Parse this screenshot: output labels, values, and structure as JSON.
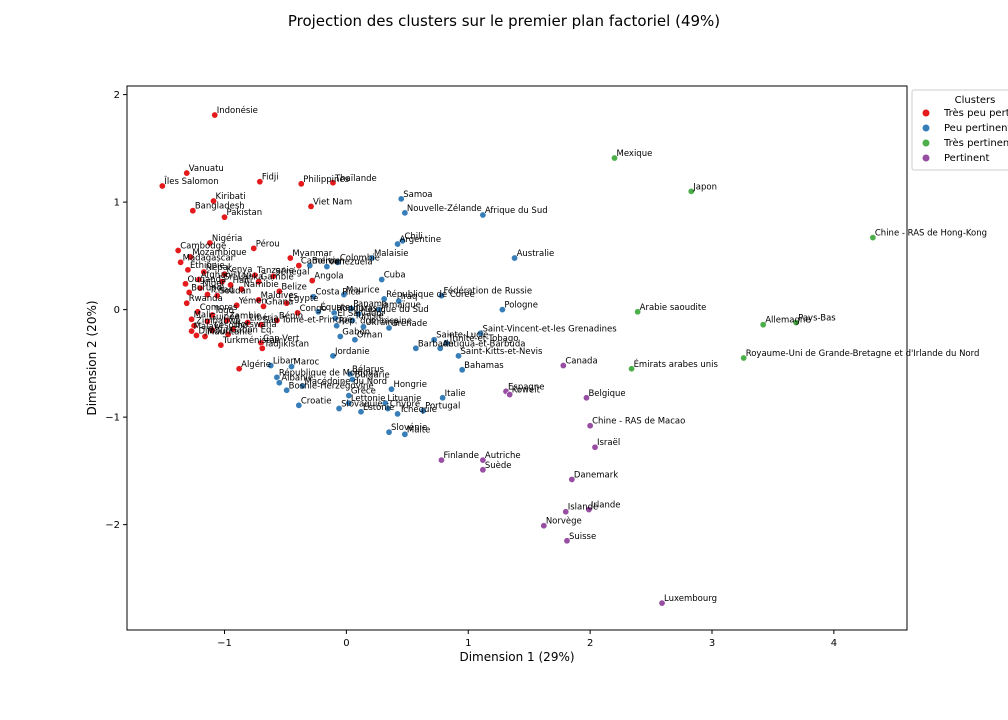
{
  "chart_data": {
    "type": "scatter",
    "title": "Projection des clusters sur le premier plan factoriel (49%)",
    "xlabel": "Dimension 1 (29%)",
    "ylabel": "Dimension 2 (20%)",
    "xlim": [
      -1.8,
      4.6
    ],
    "ylim": [
      -2.98,
      2.08
    ],
    "xticks": [
      -1,
      0,
      1,
      2,
      3,
      4
    ],
    "yticks": [
      -2,
      -1,
      0,
      1,
      2
    ],
    "grid": false,
    "legend": {
      "title": "Clusters",
      "placement": "top-right",
      "entries": [
        "Très peu pertinent",
        "Peu pertinent",
        "Très pertinent",
        "Pertinent"
      ]
    },
    "colors": {
      "Très peu pertinent": "#e41a1c",
      "Peu pertinent": "#377eb8",
      "Très pertinent": "#4daf4a",
      "Pertinent": "#984ea3"
    },
    "series": [
      {
        "name": "Très peu pertinent",
        "points": [
          {
            "label": "Indonésie",
            "x": -1.08,
            "y": 1.81
          },
          {
            "label": "Vanuatu",
            "x": -1.31,
            "y": 1.27
          },
          {
            "label": "Îles Salomon",
            "x": -1.51,
            "y": 1.15
          },
          {
            "label": "Fidji",
            "x": -0.71,
            "y": 1.19
          },
          {
            "label": "Philippines",
            "x": -0.37,
            "y": 1.17
          },
          {
            "label": "Thaïlande",
            "x": -0.11,
            "y": 1.18
          },
          {
            "label": "Kiribati",
            "x": -1.09,
            "y": 1.01
          },
          {
            "label": "Bangladesh",
            "x": -1.26,
            "y": 0.92
          },
          {
            "label": "Pakistan",
            "x": -1.0,
            "y": 0.86
          },
          {
            "label": "Viet Nam",
            "x": -0.29,
            "y": 0.96
          },
          {
            "label": "Nigéria",
            "x": -1.12,
            "y": 0.62
          },
          {
            "label": "Pérou",
            "x": -0.76,
            "y": 0.57
          },
          {
            "label": "Cambodge",
            "x": -1.38,
            "y": 0.55
          },
          {
            "label": "Mozambique",
            "x": -1.28,
            "y": 0.49
          },
          {
            "label": "Madagascar",
            "x": -1.36,
            "y": 0.44
          },
          {
            "label": "Myanmar",
            "x": -0.46,
            "y": 0.48
          },
          {
            "label": "Cameroun",
            "x": -0.39,
            "y": 0.41
          },
          {
            "label": "Éthiopie",
            "x": -1.3,
            "y": 0.37
          },
          {
            "label": "Népal",
            "x": -1.17,
            "y": 0.35
          },
          {
            "label": "Kenya",
            "x": -1.0,
            "y": 0.33
          },
          {
            "label": "Tanzanie",
            "x": -0.75,
            "y": 0.32
          },
          {
            "label": "Sénégal",
            "x": -0.6,
            "y": 0.31
          },
          {
            "label": "Afghanistan",
            "x": -1.21,
            "y": 0.28
          },
          {
            "label": "Sri Lanka",
            "x": -1.02,
            "y": 0.26
          },
          {
            "label": "Gambie",
            "x": -0.72,
            "y": 0.26
          },
          {
            "label": "Angola",
            "x": -0.28,
            "y": 0.27
          },
          {
            "label": "Ouganda",
            "x": -1.32,
            "y": 0.24
          },
          {
            "label": "Haïti",
            "x": -0.95,
            "y": 0.23
          },
          {
            "label": "Niger",
            "x": -1.2,
            "y": 0.2
          },
          {
            "label": "Namibie",
            "x": -0.86,
            "y": 0.19
          },
          {
            "label": "Belize",
            "x": -0.55,
            "y": 0.17
          },
          {
            "label": "Burundi",
            "x": -1.29,
            "y": 0.16
          },
          {
            "label": "Tchad",
            "x": -1.14,
            "y": 0.14
          },
          {
            "label": "Soudan",
            "x": -1.06,
            "y": 0.13
          },
          {
            "label": "Maldives",
            "x": -0.72,
            "y": 0.09
          },
          {
            "label": "Rwanda",
            "x": -1.31,
            "y": 0.06
          },
          {
            "label": "Yémen",
            "x": -0.9,
            "y": 0.04
          },
          {
            "label": "Ghana",
            "x": -0.68,
            "y": 0.03
          },
          {
            "label": "Égypte",
            "x": -0.49,
            "y": 0.06
          },
          {
            "label": "Comores",
            "x": -1.22,
            "y": -0.02
          },
          {
            "label": "Togo",
            "x": -1.1,
            "y": -0.05
          },
          {
            "label": "Congo",
            "x": -0.4,
            "y": -0.03
          },
          {
            "label": "Mali",
            "x": -1.27,
            "y": -0.09
          },
          {
            "label": "Guinée",
            "x": -1.14,
            "y": -0.11
          },
          {
            "label": "Zambie",
            "x": -0.98,
            "y": -0.1
          },
          {
            "label": "Libéria",
            "x": -0.81,
            "y": -0.12
          },
          {
            "label": "Bénin",
            "x": -0.57,
            "y": -0.1
          },
          {
            "label": "Zimbabwe",
            "x": -1.25,
            "y": -0.15
          },
          {
            "label": "Sao Tomé-et-Principe",
            "x": -0.7,
            "y": -0.14
          },
          {
            "label": "Malawi",
            "x": -1.27,
            "y": -0.2
          },
          {
            "label": "Lesotho",
            "x": -1.1,
            "y": -0.19
          },
          {
            "label": "Botswana",
            "x": -0.93,
            "y": -0.18
          },
          {
            "label": "Djibouti",
            "x": -1.23,
            "y": -0.24
          },
          {
            "label": "Mauritanie",
            "x": -1.16,
            "y": -0.25
          },
          {
            "label": "Gabon Eq.",
            "x": -0.97,
            "y": -0.23
          },
          {
            "label": "Turkménistan",
            "x": -1.03,
            "y": -0.33
          },
          {
            "label": "Cap-Vert",
            "x": -0.7,
            "y": -0.31
          },
          {
            "label": "Tadjikistan",
            "x": -0.69,
            "y": -0.36
          },
          {
            "label": "Algérie",
            "x": -0.88,
            "y": -0.55
          }
        ]
      },
      {
        "name": "Peu pertinent",
        "points": [
          {
            "label": "Samoa",
            "x": 0.45,
            "y": 1.03
          },
          {
            "label": "Nouvelle-Zélande",
            "x": 0.48,
            "y": 0.9
          },
          {
            "label": "Afrique du Sud",
            "x": 1.12,
            "y": 0.88
          },
          {
            "label": "Chili",
            "x": 0.46,
            "y": 0.64
          },
          {
            "label": "Argentine",
            "x": 0.42,
            "y": 0.61
          },
          {
            "label": "Australie",
            "x": 1.38,
            "y": 0.48
          },
          {
            "label": "Malaisie",
            "x": 0.21,
            "y": 0.48
          },
          {
            "label": "Colombie",
            "x": -0.07,
            "y": 0.44
          },
          {
            "label": "Bolivie",
            "x": -0.3,
            "y": 0.41
          },
          {
            "label": "Venezuela",
            "x": -0.16,
            "y": 0.4
          },
          {
            "label": "Cuba",
            "x": 0.29,
            "y": 0.28
          },
          {
            "label": "Maurice",
            "x": -0.02,
            "y": 0.14
          },
          {
            "label": "Costa Rica",
            "x": -0.27,
            "y": 0.12
          },
          {
            "label": "Fédération de Russie",
            "x": 0.78,
            "y": 0.13
          },
          {
            "label": "Iraq",
            "x": 0.43,
            "y": 0.08
          },
          {
            "label": "République de Corée",
            "x": 0.31,
            "y": 0.1
          },
          {
            "label": "Pologne",
            "x": 1.28,
            "y": 0.0
          },
          {
            "label": "Panama",
            "x": 0.04,
            "y": 0.01
          },
          {
            "label": "Jamaïque",
            "x": 0.27,
            "y": 0.0
          },
          {
            "label": "Équateur",
            "x": -0.23,
            "y": -0.02
          },
          {
            "label": "Honduras",
            "x": -0.1,
            "y": -0.03
          },
          {
            "label": "Mexique du Sud",
            "x": 0.1,
            "y": -0.04
          },
          {
            "label": "El Salvador",
            "x": -0.09,
            "y": -0.08
          },
          {
            "label": "Tunisie",
            "x": 0.05,
            "y": -0.1
          },
          {
            "label": "Rép. dominicaine",
            "x": -0.08,
            "y": -0.15
          },
          {
            "label": "Ukraine",
            "x": 0.14,
            "y": -0.16
          },
          {
            "label": "Grenade",
            "x": 0.35,
            "y": -0.17
          },
          {
            "label": "Gabon",
            "x": -0.05,
            "y": -0.25
          },
          {
            "label": "Oman",
            "x": 0.07,
            "y": -0.28
          },
          {
            "label": "Sainte-Lucie",
            "x": 0.72,
            "y": -0.28
          },
          {
            "label": "Trinité-et-Tobago",
            "x": 0.82,
            "y": -0.31
          },
          {
            "label": "Saint-Vincent-et-les Grenadines",
            "x": 1.1,
            "y": -0.22
          },
          {
            "label": "Barbade",
            "x": 0.57,
            "y": -0.36
          },
          {
            "label": "Antigua-et-Barbuda",
            "x": 0.77,
            "y": -0.36
          },
          {
            "label": "Saint-Kitts-et-Nevis",
            "x": 0.92,
            "y": -0.43
          },
          {
            "label": "Jordanie",
            "x": -0.11,
            "y": -0.43
          },
          {
            "label": "Liban",
            "x": -0.62,
            "y": -0.52
          },
          {
            "label": "Maroc",
            "x": -0.45,
            "y": -0.53
          },
          {
            "label": "Bahamas",
            "x": 0.95,
            "y": -0.56
          },
          {
            "label": "Bélarus",
            "x": 0.03,
            "y": -0.6
          },
          {
            "label": "Bulgarie",
            "x": 0.05,
            "y": -0.65
          },
          {
            "label": "République de Moldova",
            "x": -0.57,
            "y": -0.63
          },
          {
            "label": "Albanie",
            "x": -0.55,
            "y": -0.68
          },
          {
            "label": "Macédoine du Nord",
            "x": -0.36,
            "y": -0.71
          },
          {
            "label": "Bosnie-Herzégovine",
            "x": -0.49,
            "y": -0.75
          },
          {
            "label": "Hongrie",
            "x": 0.37,
            "y": -0.74
          },
          {
            "label": "Grèce",
            "x": 0.02,
            "y": -0.8
          },
          {
            "label": "Italie",
            "x": 0.79,
            "y": -0.82
          },
          {
            "label": "Croatie",
            "x": -0.39,
            "y": -0.89
          },
          {
            "label": "Lettonie",
            "x": 0.02,
            "y": -0.87
          },
          {
            "label": "Lituanie",
            "x": 0.32,
            "y": -0.87
          },
          {
            "label": "Slovaquie",
            "x": -0.06,
            "y": -0.92
          },
          {
            "label": "Estonie",
            "x": 0.12,
            "y": -0.95
          },
          {
            "label": "Chypre",
            "x": 0.34,
            "y": -0.92
          },
          {
            "label": "Tchéquie",
            "x": 0.42,
            "y": -0.97
          },
          {
            "label": "Portugal",
            "x": 0.63,
            "y": -0.94
          },
          {
            "label": "Slovénie",
            "x": 0.35,
            "y": -1.14
          },
          {
            "label": "Malte",
            "x": 0.48,
            "y": -1.16
          }
        ]
      },
      {
        "name": "Très pertinent",
        "points": [
          {
            "label": "Mexique",
            "x": 2.2,
            "y": 1.41
          },
          {
            "label": "Japon",
            "x": 2.83,
            "y": 1.1
          },
          {
            "label": "Chine - RAS de Hong-Kong",
            "x": 4.32,
            "y": 0.67
          },
          {
            "label": "Arabie saoudite",
            "x": 2.39,
            "y": -0.02
          },
          {
            "label": "Allemagne",
            "x": 3.42,
            "y": -0.14
          },
          {
            "label": "Pays-Bas",
            "x": 3.69,
            "y": -0.12
          },
          {
            "label": "Royaume-Uni de Grande-Bretagne et d'Irlande du Nord",
            "x": 3.26,
            "y": -0.45
          },
          {
            "label": "Émirats arabes unis",
            "x": 2.34,
            "y": -0.55
          }
        ]
      },
      {
        "name": "Pertinent",
        "points": [
          {
            "label": "Canada",
            "x": 1.78,
            "y": -0.52
          },
          {
            "label": "Espagne",
            "x": 1.31,
            "y": -0.76
          },
          {
            "label": "Koweït",
            "x": 1.34,
            "y": -0.79
          },
          {
            "label": "Belgique",
            "x": 1.97,
            "y": -0.82
          },
          {
            "label": "Chine - RAS de Macao",
            "x": 2.0,
            "y": -1.08
          },
          {
            "label": "Israël",
            "x": 2.04,
            "y": -1.28
          },
          {
            "label": "Finlande",
            "x": 0.78,
            "y": -1.4
          },
          {
            "label": "Autriche",
            "x": 1.12,
            "y": -1.4
          },
          {
            "label": "Suède",
            "x": 1.12,
            "y": -1.49
          },
          {
            "label": "Danemark",
            "x": 1.85,
            "y": -1.58
          },
          {
            "label": "Islande",
            "x": 1.8,
            "y": -1.88
          },
          {
            "label": "Irlande",
            "x": 1.99,
            "y": -1.86
          },
          {
            "label": "Norvège",
            "x": 1.62,
            "y": -2.01
          },
          {
            "label": "Suisse",
            "x": 1.81,
            "y": -2.15
          },
          {
            "label": "Luxembourg",
            "x": 2.59,
            "y": -2.73
          }
        ]
      }
    ]
  }
}
